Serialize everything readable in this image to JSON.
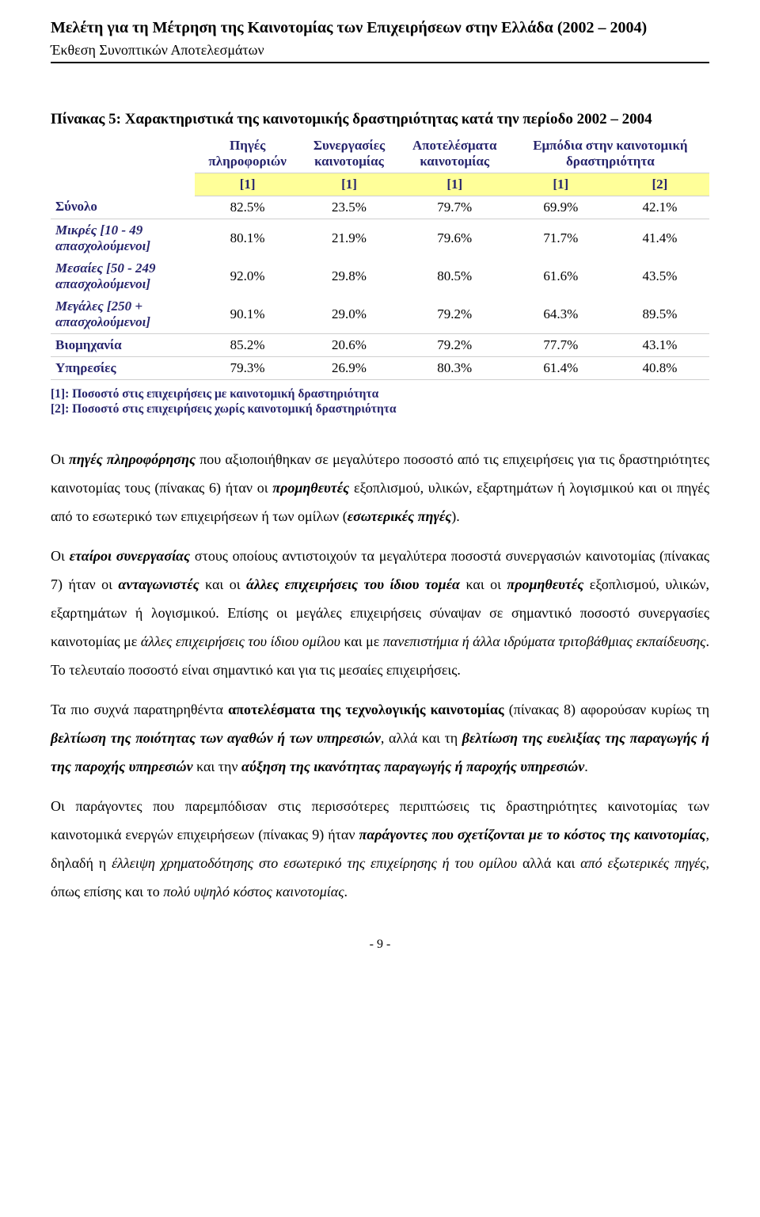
{
  "header": {
    "title": "Μελέτη για τη Μέτρηση της Καινοτομίας των Επιχειρήσεων στην Ελλάδα (2002 – 2004)",
    "subtitle": "Έκθεση Συνοπτικών Αποτελεσμάτων"
  },
  "table": {
    "title": "Πίνακας 5: Χαρακτηριστικά της καινοτομικής δραστηριότητας κατά την περίοδο 2002 – 2004",
    "columns": [
      {
        "l1": "Πηγές",
        "l2": "πληροφοριών"
      },
      {
        "l1": "Συνεργασίες",
        "l2": "καινοτομίας"
      },
      {
        "l1": "Αποτελέσματα",
        "l2": "καινοτομίας"
      },
      {
        "l1": "Εμπόδια στην καινοτομική",
        "l2": "δραστηριότητα"
      }
    ],
    "refs": [
      "[1]",
      "[1]",
      "[1]",
      "[1]",
      "[2]"
    ],
    "rows": [
      {
        "label": "Σύνολο",
        "italic": false,
        "thinTop": false,
        "vals": [
          "82.5%",
          "23.5%",
          "79.7%",
          "69.9%",
          "42.1%"
        ],
        "sub": ""
      },
      {
        "label": "Μικρές [10 - 49",
        "sub": "απασχολούμενοι]",
        "italic": true,
        "thinTop": true,
        "vals": [
          "80.1%",
          "21.9%",
          "79.6%",
          "71.7%",
          "41.4%"
        ]
      },
      {
        "label": "Μεσαίες [50 - 249",
        "sub": "απασχολούμενοι]",
        "italic": true,
        "thinTop": false,
        "vals": [
          "92.0%",
          "29.8%",
          "80.5%",
          "61.6%",
          "43.5%"
        ]
      },
      {
        "label": "Μεγάλες [250 +",
        "sub": "απασχολούμενοι]",
        "italic": true,
        "thinTop": false,
        "vals": [
          "90.1%",
          "29.0%",
          "79.2%",
          "64.3%",
          "89.5%"
        ]
      },
      {
        "label": "Βιομηχανία",
        "sub": "",
        "italic": false,
        "thinTop": true,
        "vals": [
          "85.2%",
          "20.6%",
          "79.2%",
          "77.7%",
          "43.1%"
        ]
      },
      {
        "label": "Υπηρεσίες",
        "sub": "",
        "italic": false,
        "thinTop": true,
        "thinBottom": true,
        "vals": [
          "79.3%",
          "26.9%",
          "80.3%",
          "61.4%",
          "40.8%"
        ]
      }
    ],
    "footnotes": [
      "[1]: Ποσοστό στις επιχειρήσεις με καινοτομική δραστηριότητα",
      "[2]: Ποσοστό στις επιχειρήσεις χωρίς καινοτομική δραστηριότητα"
    ]
  },
  "paragraphs": {
    "p1_a": "Οι ",
    "p1_b": "πηγές πληροφόρησης",
    "p1_c": " που αξιοποιήθηκαν σε μεγαλύτερο ποσοστό από τις επιχειρήσεις για τις δραστηριότητες καινοτομίας τους (πίνακας 6) ήταν οι ",
    "p1_d": "προμηθευτές",
    "p1_e": " εξοπλισμού, υλικών, εξαρτημάτων ή λογισμικού και οι πηγές από το εσωτερικό των επιχειρήσεων ή των ομίλων (",
    "p1_f": "εσωτερικές πηγές",
    "p1_g": ").",
    "p2_a": "Οι ",
    "p2_b": "εταίροι συνεργασίας",
    "p2_c": " στους οποίους αντιστοιχούν τα μεγαλύτερα ποσοστά συνεργασιών καινοτομίας (πίνακας 7) ήταν οι ",
    "p2_d": "ανταγωνιστές",
    "p2_e": " και οι ",
    "p2_f": "άλλες επιχειρήσεις του ίδιου τομέα",
    "p2_g": " και οι ",
    "p2_h": "προμηθευτές",
    "p2_i": " εξοπλισμού, υλικών, εξαρτημάτων ή λογισμικού. Επίσης οι μεγάλες επιχειρήσεις σύναψαν σε σημαντικό ποσοστό συνεργασίες καινοτομίας με ",
    "p2_j": "άλλες επιχειρήσεις του ίδιου ομίλου",
    "p2_k": " και με ",
    "p2_l": "πανεπιστήμια ή άλλα ιδρύματα τριτοβάθμιας εκπαίδευσης",
    "p2_m": ". Το τελευταίο ποσοστό είναι σημαντικό και για τις μεσαίες επιχειρήσεις.",
    "p3_a": "Τα πιο συχνά παρατηρηθέντα ",
    "p3_b": "αποτελέσματα της τεχνολογικής καινοτομίας",
    "p3_c": " (πίνακας 8) αφορούσαν κυρίως τη ",
    "p3_d": "βελτίωση της ποιότητας των αγαθών ή των υπηρεσιών",
    "p3_e": ", αλλά και τη ",
    "p3_f": "βελτίωση της ευελιξίας της παραγωγής ή της παροχής υπηρεσιών",
    "p3_g": " και την ",
    "p3_h": "αύξηση της ικανότητας παραγωγής ή παροχής υπηρεσιών",
    "p3_i": ".",
    "p4_a": "Οι παράγοντες που παρεμπόδισαν στις περισσότερες περιπτώσεις τις δραστηριότητες καινοτομίας των καινοτομικά ενεργών επιχειρήσεων (πίνακας 9) ήταν ",
    "p4_b": "παράγοντες που σχετίζονται με το κόστος της καινοτομίας",
    "p4_c": ", δηλαδή η ",
    "p4_d": "έλλειψη χρηματοδότησης στο εσωτερικό της επιχείρησης ή του ομίλου",
    "p4_e": " αλλά και ",
    "p4_f": "από εξωτερικές πηγές",
    "p4_g": ", όπως επίσης και το ",
    "p4_h": "πολύ υψηλό κόστος καινοτομίας",
    "p4_i": "."
  },
  "pagenum": "- 9 -"
}
